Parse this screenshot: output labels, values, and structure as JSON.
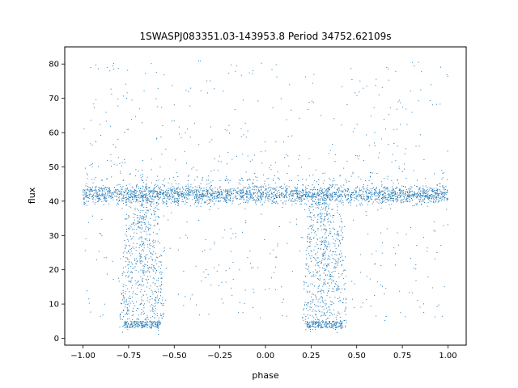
{
  "chart_data": {
    "type": "scatter",
    "title": "1SWASPJ083351.03-143953.8 Period 34752.62109s",
    "xlabel": "phase",
    "ylabel": "flux",
    "xlim": [
      -1.1,
      1.1
    ],
    "ylim": [
      -2,
      85
    ],
    "x_ticks": [
      -1.0,
      -0.75,
      -0.5,
      -0.25,
      0.0,
      0.25,
      0.5,
      0.75,
      1.0
    ],
    "x_tick_labels": [
      "−1.00",
      "−0.75",
      "−0.50",
      "−0.25",
      "0.00",
      "0.25",
      "0.50",
      "0.75",
      "1.00"
    ],
    "y_ticks": [
      0,
      10,
      20,
      30,
      40,
      50,
      60,
      70,
      80
    ],
    "y_tick_labels": [
      "0",
      "10",
      "20",
      "30",
      "40",
      "50",
      "60",
      "70",
      "80"
    ],
    "grid": false,
    "legend": "none",
    "marker_color": "#1f77b4",
    "series": [
      {
        "points_description_note": "",
        "baseline_flux": 42,
        "baseline_spread": 3,
        "eclipse_centers": [
          -0.675,
          0.325
        ],
        "eclipse_half_width": 0.19,
        "eclipse_min_flux": 3,
        "outlier_max_flux": 81
      }
    ]
  }
}
